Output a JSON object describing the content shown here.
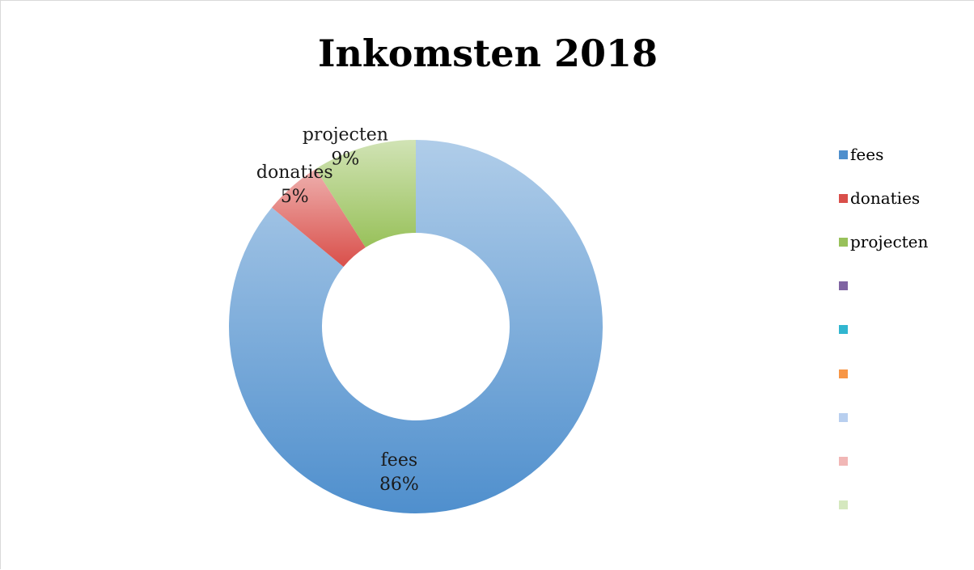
{
  "chart_data": {
    "type": "pie",
    "subtype": "donut",
    "title": "Inkomsten 2018",
    "categories": [
      "fees",
      "donaties",
      "projecten"
    ],
    "values": [
      86,
      5,
      9
    ],
    "value_labels": [
      "86%",
      "5%",
      "9%"
    ],
    "colors": [
      "#4f8fcd",
      "#d94f4a",
      "#98c15a"
    ],
    "legend_position": "right",
    "legend": [
      {
        "label": "fees",
        "color": "#4f8fcd"
      },
      {
        "label": "donaties",
        "color": "#d94f4a"
      },
      {
        "label": "projecten",
        "color": "#98c15a"
      },
      {
        "label": "",
        "color": "#8064a2"
      },
      {
        "label": "",
        "color": "#31b6d0"
      },
      {
        "label": "",
        "color": "#f79646"
      },
      {
        "label": "",
        "color": "#b8cfef"
      },
      {
        "label": "",
        "color": "#f1b7b6"
      },
      {
        "label": "",
        "color": "#d5e8bf"
      }
    ]
  }
}
